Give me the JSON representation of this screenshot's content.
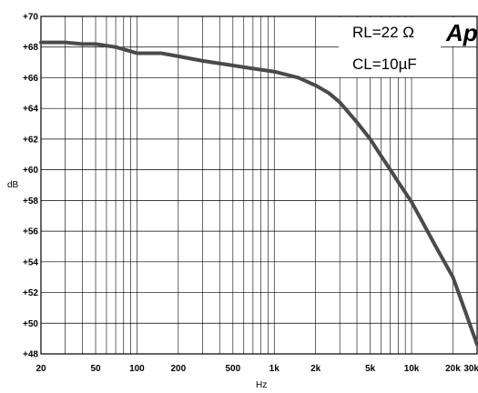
{
  "chart_data": {
    "type": "line",
    "title": "",
    "xlabel": "Hz",
    "ylabel": "dB",
    "xscale": "log",
    "xlim": [
      20,
      30000
    ],
    "ylim": [
      48,
      70
    ],
    "grid": true,
    "x_ticks": [
      {
        "value": 20,
        "label": "20"
      },
      {
        "value": 50,
        "label": "50"
      },
      {
        "value": 100,
        "label": "100"
      },
      {
        "value": 200,
        "label": "200"
      },
      {
        "value": 500,
        "label": "500"
      },
      {
        "value": 1000,
        "label": "1k"
      },
      {
        "value": 2000,
        "label": "2k"
      },
      {
        "value": 5000,
        "label": "5k"
      },
      {
        "value": 10000,
        "label": "10k"
      },
      {
        "value": 20000,
        "label": "20k"
      },
      {
        "value": 30000,
        "label": "30k"
      }
    ],
    "y_ticks": [
      {
        "value": 70,
        "label": "+70"
      },
      {
        "value": 68,
        "label": "+68"
      },
      {
        "value": 66,
        "label": "+66"
      },
      {
        "value": 64,
        "label": "+64"
      },
      {
        "value": 62,
        "label": "+62"
      },
      {
        "value": 60,
        "label": "+60"
      },
      {
        "value": 58,
        "label": "+58"
      },
      {
        "value": 56,
        "label": "+56"
      },
      {
        "value": 54,
        "label": "+54"
      },
      {
        "value": 52,
        "label": "+52"
      },
      {
        "value": 50,
        "label": "+50"
      },
      {
        "value": 48,
        "label": "+48"
      }
    ],
    "legend_lines": [
      "RL=22 Ω",
      "CL=10µF"
    ],
    "legend_placement": "top-right",
    "logo": "Ap",
    "series": [
      {
        "color": "#4a4a4a",
        "x": [
          20,
          30,
          40,
          50,
          70,
          100,
          150,
          200,
          300,
          500,
          700,
          1000,
          1500,
          2000,
          2500,
          3000,
          4000,
          5000,
          6000,
          7000,
          8000,
          10000,
          12000,
          15000,
          20000,
          25000,
          30000
        ],
        "y": [
          68.3,
          68.3,
          68.2,
          68.2,
          68.0,
          67.6,
          67.6,
          67.4,
          67.1,
          66.8,
          66.6,
          66.4,
          66.0,
          65.5,
          65.0,
          64.4,
          63.1,
          62.0,
          60.9,
          60.0,
          59.2,
          57.9,
          56.6,
          55.0,
          53.0,
          50.6,
          48.6
        ]
      }
    ]
  }
}
